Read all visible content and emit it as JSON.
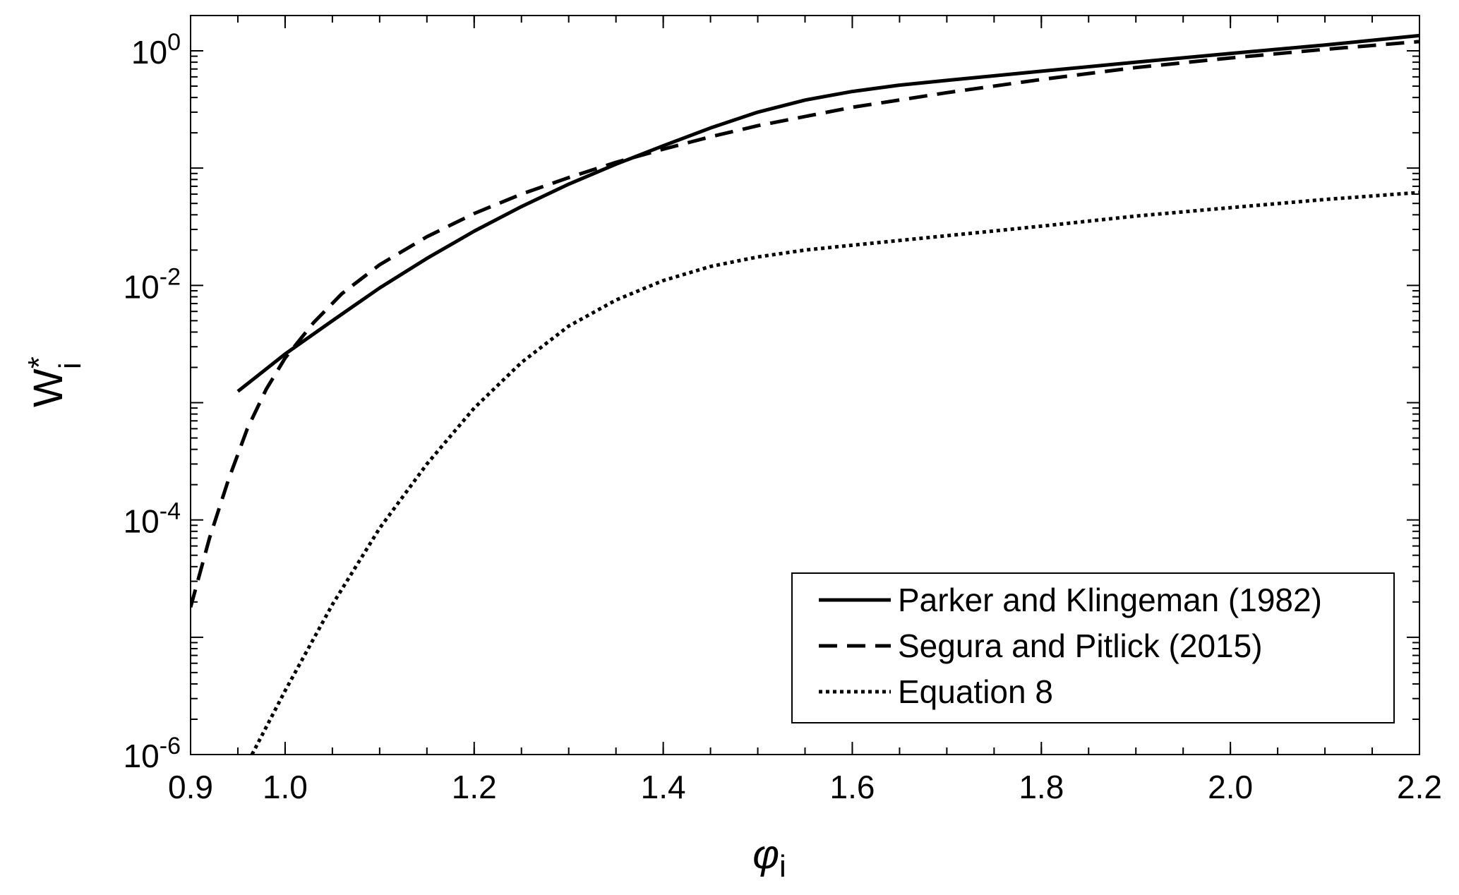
{
  "chart_data": {
    "type": "line",
    "title": "",
    "xlabel": {
      "symbol": "φ",
      "subscript": "i"
    },
    "ylabel": {
      "base": "W",
      "superscript": "*",
      "subscript": "i"
    },
    "xlim": [
      0.9,
      2.2
    ],
    "ylim": [
      1e-06,
      2
    ],
    "yscale": "log",
    "grid": false,
    "legend_position": "bottom-right",
    "x_ticks": [
      {
        "value": 0.9,
        "label": "0.9"
      },
      {
        "value": 1.0,
        "label": "1.0"
      },
      {
        "value": 1.2,
        "label": "1.2"
      },
      {
        "value": 1.4,
        "label": "1.4"
      },
      {
        "value": 1.6,
        "label": "1.6"
      },
      {
        "value": 1.8,
        "label": "1.8"
      },
      {
        "value": 2.0,
        "label": "2.0"
      },
      {
        "value": 2.2,
        "label": "2.2"
      }
    ],
    "y_ticks": [
      {
        "value": 1e-06,
        "base": "10",
        "exp": "-6"
      },
      {
        "value": 0.0001,
        "base": "10",
        "exp": "-4"
      },
      {
        "value": 0.01,
        "base": "10",
        "exp": "-2"
      },
      {
        "value": 1,
        "base": "10",
        "exp": "0"
      }
    ],
    "series": [
      {
        "name": "Parker and Klingeman (1982)",
        "style": "solid",
        "color": "#000000",
        "points": [
          [
            0.95,
            0.00125
          ],
          [
            1.0,
            0.0026
          ],
          [
            1.05,
            0.005
          ],
          [
            1.1,
            0.0095
          ],
          [
            1.15,
            0.017
          ],
          [
            1.2,
            0.029
          ],
          [
            1.25,
            0.047
          ],
          [
            1.3,
            0.073
          ],
          [
            1.35,
            0.108
          ],
          [
            1.4,
            0.155
          ],
          [
            1.45,
            0.22
          ],
          [
            1.5,
            0.3
          ],
          [
            1.55,
            0.38
          ],
          [
            1.6,
            0.45
          ],
          [
            1.65,
            0.51
          ],
          [
            1.7,
            0.56
          ],
          [
            1.8,
            0.67
          ],
          [
            1.9,
            0.8
          ],
          [
            2.0,
            0.95
          ],
          [
            2.1,
            1.12
          ],
          [
            2.2,
            1.35
          ]
        ]
      },
      {
        "name": "Segura and Pitlick (2015)",
        "style": "dashed",
        "color": "#000000",
        "points": [
          [
            0.9,
            1.8e-05
          ],
          [
            0.92,
            7e-05
          ],
          [
            0.94,
            0.00022
          ],
          [
            0.96,
            0.0006
          ],
          [
            0.98,
            0.0013
          ],
          [
            1.0,
            0.0024
          ],
          [
            1.03,
            0.0048
          ],
          [
            1.06,
            0.0085
          ],
          [
            1.1,
            0.015
          ],
          [
            1.15,
            0.026
          ],
          [
            1.2,
            0.041
          ],
          [
            1.25,
            0.06
          ],
          [
            1.3,
            0.083
          ],
          [
            1.35,
            0.112
          ],
          [
            1.4,
            0.145
          ],
          [
            1.45,
            0.185
          ],
          [
            1.5,
            0.23
          ],
          [
            1.6,
            0.33
          ],
          [
            1.7,
            0.44
          ],
          [
            1.8,
            0.57
          ],
          [
            1.9,
            0.72
          ],
          [
            2.0,
            0.87
          ],
          [
            2.1,
            1.03
          ],
          [
            2.2,
            1.2
          ]
        ]
      },
      {
        "name": "Equation 8",
        "style": "dotted",
        "color": "#000000",
        "points": [
          [
            0.965,
            1e-06
          ],
          [
            1.0,
            3.5e-06
          ],
          [
            1.05,
            1.9e-05
          ],
          [
            1.1,
            8.5e-05
          ],
          [
            1.15,
            0.0003
          ],
          [
            1.2,
            0.0009
          ],
          [
            1.25,
            0.0022
          ],
          [
            1.3,
            0.0045
          ],
          [
            1.35,
            0.0075
          ],
          [
            1.4,
            0.011
          ],
          [
            1.45,
            0.0145
          ],
          [
            1.5,
            0.0175
          ],
          [
            1.55,
            0.02
          ],
          [
            1.6,
            0.022
          ],
          [
            1.7,
            0.0265
          ],
          [
            1.8,
            0.032
          ],
          [
            1.9,
            0.039
          ],
          [
            2.0,
            0.046
          ],
          [
            2.1,
            0.054
          ],
          [
            2.2,
            0.062
          ]
        ]
      }
    ]
  }
}
